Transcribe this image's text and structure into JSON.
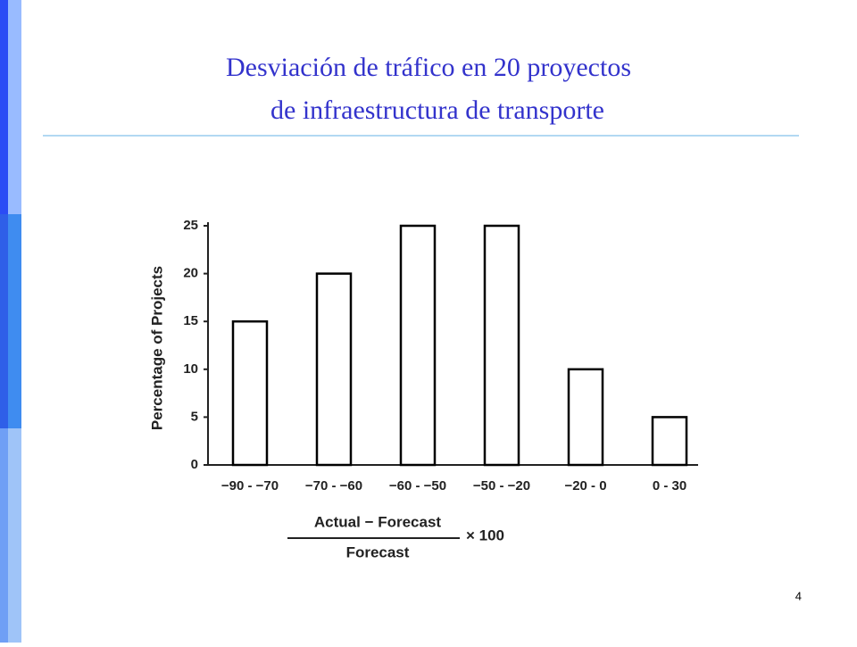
{
  "header": {
    "title_lines": [
      "Desviación de tráfico en 20 proyectos",
      "de infraestructura de transporte"
    ]
  },
  "chart_data": {
    "type": "bar",
    "y_label": "Percentage of Projects",
    "x_label": {
      "numerator": "Actual − Forecast",
      "denominator": "Forecast",
      "multiplier": "× 100"
    },
    "categories": [
      "−90 - −70",
      "−70 - −60",
      "−60 - −50",
      "−50 - −20",
      "−20 - 0",
      "0 - 30"
    ],
    "values": [
      15,
      20,
      25,
      25,
      10,
      5
    ],
    "color": "#ffffff",
    "edge_color": "#000000",
    "ylim": [
      0,
      25
    ],
    "yticks": [
      0,
      5,
      10,
      15,
      20,
      25
    ],
    "grid": false
  },
  "footer": {
    "page_number": "4"
  }
}
